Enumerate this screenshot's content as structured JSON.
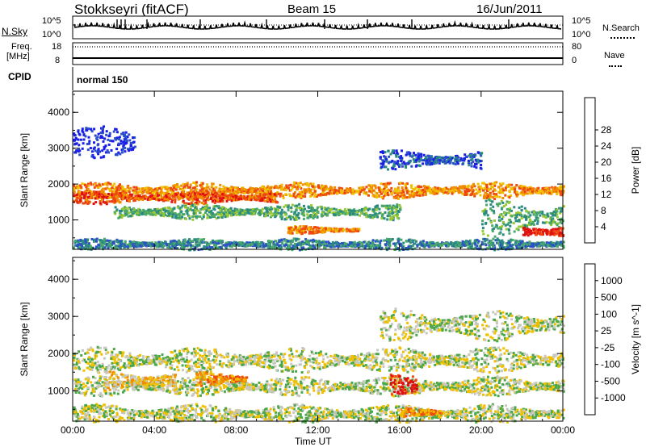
{
  "header": {
    "station": "Stokkseyri (fitACF)",
    "beam": "Beam 15",
    "date": "16/Jun/2011"
  },
  "strip_labels": {
    "nsky": "N.Sky",
    "nsearch": "N.Search",
    "freq": "Freq.",
    "mhz": "[MHz]",
    "nave": "Nave",
    "cpid": "CPID",
    "cpid_value": "normal 150",
    "nsky_ticks": [
      "10^5",
      "10^0"
    ],
    "nsearch_ticks": [
      "10^5",
      "10^0"
    ],
    "freq_ticks": [
      "18",
      "8"
    ],
    "nave_ticks": [
      "80",
      "0"
    ]
  },
  "chart_data": [
    {
      "type": "heatmap",
      "name": "power-panel",
      "ylabel": "Slant Range [km]",
      "xlabel": "",
      "x_ticks": [
        "00:00",
        "04:00",
        "08:00",
        "12:00",
        "16:00",
        "20:00",
        "00:00"
      ],
      "y_ticks": [
        "1000",
        "2000",
        "3000",
        "4000"
      ],
      "ylim": [
        180,
        4590
      ],
      "xlim_hours": [
        0,
        24
      ],
      "colorbar": {
        "label": "Power [dB]",
        "ticks": [
          "4",
          "8",
          "12",
          "16",
          "20",
          "24",
          "28"
        ],
        "colors": [
          "#1a1ee6",
          "#2c50c8",
          "#2a8a82",
          "#4aa86a",
          "#9ac832",
          "#f0c000",
          "#f08c00",
          "#ee4810",
          "#e01010"
        ]
      },
      "echo_bands": [
        {
          "t0": 0.0,
          "t1": 24.0,
          "r_center": 1850,
          "r_width": 260,
          "level": 6
        },
        {
          "t0": 0.0,
          "t1": 10.0,
          "r_center": 1650,
          "r_width": 200,
          "level": 7
        },
        {
          "t0": 2.0,
          "t1": 16.0,
          "r_center": 1250,
          "r_width": 250,
          "level": 3
        },
        {
          "t0": 0.0,
          "t1": 24.0,
          "r_center": 350,
          "r_width": 180,
          "level": 2
        },
        {
          "t0": 10.5,
          "t1": 14.0,
          "r_center": 750,
          "r_width": 120,
          "level": 6
        },
        {
          "t0": 20.0,
          "t1": 24.0,
          "r_center": 1100,
          "r_width": 600,
          "level": 3
        },
        {
          "t0": 22.0,
          "t1": 24.0,
          "r_center": 700,
          "r_width": 250,
          "level": 8
        },
        {
          "t0": 15.0,
          "t1": 20.0,
          "r_center": 2700,
          "r_width": 300,
          "level": 1
        },
        {
          "t0": 0.0,
          "t1": 3.0,
          "r_center": 3200,
          "r_width": 500,
          "level": 0
        }
      ]
    },
    {
      "type": "heatmap",
      "name": "velocity-panel",
      "ylabel": "Slant Range [km]",
      "xlabel": "Time UT",
      "x_ticks": [
        "00:00",
        "04:00",
        "08:00",
        "12:00",
        "16:00",
        "20:00",
        "00:00"
      ],
      "y_ticks": [
        "1000",
        "2000",
        "3000",
        "4000"
      ],
      "ylim": [
        180,
        4590
      ],
      "xlim_hours": [
        0,
        24
      ],
      "colorbar": {
        "label": "Velocity [m s^-1]",
        "ticks": [
          "1000",
          "500",
          "100",
          "25",
          "-25",
          "-100",
          "-500",
          "-1000"
        ],
        "colors": [
          "#1a1ee6",
          "#2c60c8",
          "#2a8a62",
          "#4aa84a",
          "#c8c8c0",
          "#f0c000",
          "#f08c00",
          "#ee4810",
          "#e01010"
        ]
      },
      "echo_bands": [
        {
          "t0": 0.0,
          "t1": 24.0,
          "r_center": 1850,
          "r_width": 400,
          "level": 4
        },
        {
          "t0": 0.0,
          "t1": 24.0,
          "r_center": 1150,
          "r_width": 300,
          "level": 4
        },
        {
          "t0": 0.0,
          "t1": 24.0,
          "r_center": 400,
          "r_width": 300,
          "level": 4
        },
        {
          "t0": 1.5,
          "t1": 5.0,
          "r_center": 1300,
          "r_width": 300,
          "level": 5
        },
        {
          "t0": 6.0,
          "t1": 8.5,
          "r_center": 1350,
          "r_width": 200,
          "level": 6
        },
        {
          "t0": 15.5,
          "t1": 16.8,
          "r_center": 1200,
          "r_width": 300,
          "level": 8
        },
        {
          "t0": 16.0,
          "t1": 18.0,
          "r_center": 450,
          "r_width": 150,
          "level": 6
        },
        {
          "t0": 15.0,
          "t1": 24.0,
          "r_center": 2800,
          "r_width": 500,
          "level": 4
        }
      ]
    }
  ]
}
